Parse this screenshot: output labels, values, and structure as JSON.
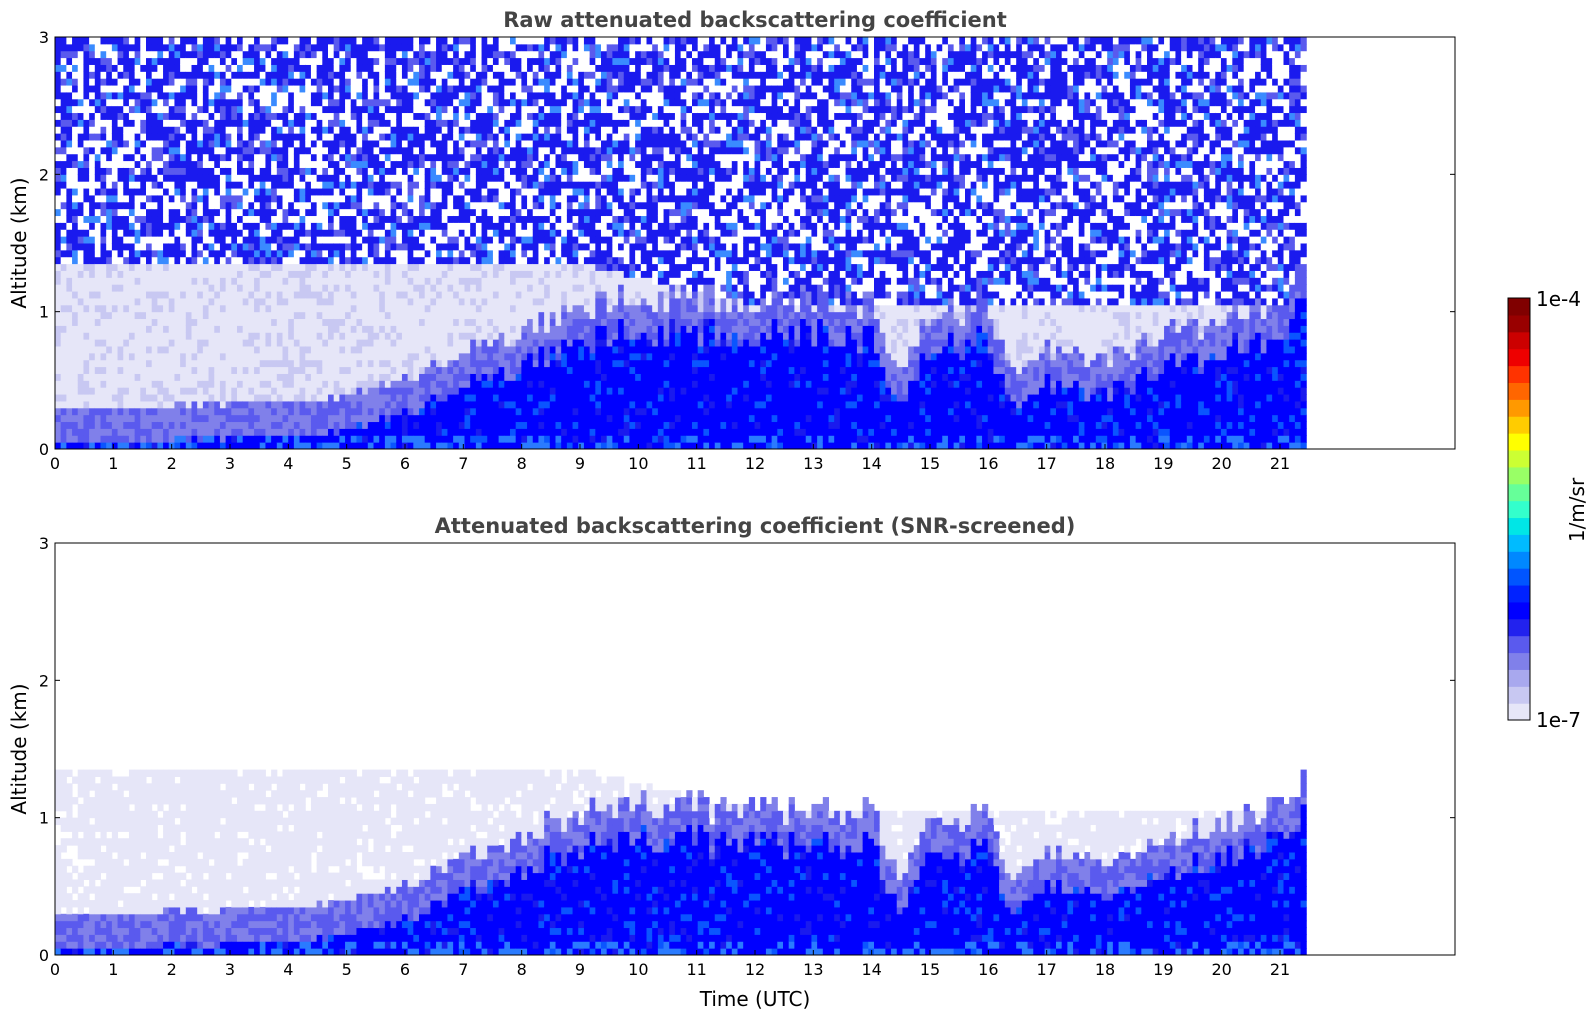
{
  "chart_data": [
    {
      "type": "heatmap",
      "title": "Raw attenuated backscattering coefficient",
      "xlabel": "",
      "ylabel": "Altitude (km)",
      "xlim": [
        0,
        24
      ],
      "ylim": [
        0,
        3
      ],
      "x_ticks": [
        "0",
        "1",
        "2",
        "3",
        "4",
        "5",
        "6",
        "7",
        "8",
        "9",
        "10",
        "11",
        "12",
        "13",
        "14",
        "15",
        "16",
        "17",
        "18",
        "19",
        "20",
        "21"
      ],
      "y_ticks": [
        "0",
        "1",
        "2",
        "3"
      ],
      "data_end_time": 21.45,
      "colormap": "jet (log scale)",
      "boundary_profile": {
        "time": [
          0,
          1,
          2,
          3,
          4,
          5,
          6,
          7,
          8,
          9,
          10,
          11,
          12,
          13,
          14,
          14.5,
          15,
          16,
          16.4,
          17,
          18,
          19,
          20,
          21,
          21.45
        ],
        "altitude_km": [
          0.05,
          0.06,
          0.07,
          0.08,
          0.1,
          0.15,
          0.25,
          0.45,
          0.6,
          0.8,
          0.85,
          0.85,
          0.8,
          0.85,
          0.8,
          0.3,
          0.75,
          0.8,
          0.3,
          0.5,
          0.4,
          0.6,
          0.7,
          0.85,
          1.0
        ]
      },
      "noise": true
    },
    {
      "type": "heatmap",
      "title": "Attenuated backscattering coefficient (SNR-screened)",
      "xlabel": "Time (UTC)",
      "ylabel": "Altitude (km)",
      "xlim": [
        0,
        24
      ],
      "ylim": [
        0,
        3
      ],
      "x_ticks": [
        "0",
        "1",
        "2",
        "3",
        "4",
        "5",
        "6",
        "7",
        "8",
        "9",
        "10",
        "11",
        "12",
        "13",
        "14",
        "15",
        "16",
        "17",
        "18",
        "19",
        "20",
        "21"
      ],
      "y_ticks": [
        "0",
        "1",
        "2",
        "3"
      ],
      "data_end_time": 21.45,
      "colormap": "jet (log scale)",
      "boundary_profile": {
        "time": [
          0,
          1,
          2,
          3,
          4,
          5,
          6,
          7,
          8,
          9,
          10,
          11,
          12,
          13,
          14,
          14.5,
          15,
          16,
          16.4,
          17,
          18,
          19,
          20,
          21,
          21.45
        ],
        "altitude_km": [
          0.05,
          0.06,
          0.07,
          0.08,
          0.1,
          0.15,
          0.25,
          0.45,
          0.6,
          0.8,
          0.85,
          0.85,
          0.8,
          0.85,
          0.8,
          0.3,
          0.75,
          0.8,
          0.3,
          0.5,
          0.4,
          0.6,
          0.7,
          0.85,
          1.0
        ]
      },
      "noise": false
    }
  ],
  "colorbar": {
    "label": "1/m/sr",
    "max_label": "1e-4",
    "min_label": "1e-7",
    "colors": [
      "#e6e6f8",
      "#c8c8f2",
      "#a8a8ee",
      "#8080ea",
      "#5a5aee",
      "#2222ee",
      "#0000ff",
      "#0022ff",
      "#0055ff",
      "#0088ff",
      "#00bbff",
      "#00e6e6",
      "#33ffcc",
      "#66ff99",
      "#99ff66",
      "#ccff33",
      "#ffff00",
      "#ffcc00",
      "#ff9900",
      "#ff6600",
      "#ff3300",
      "#ee0000",
      "#cc0000",
      "#990000",
      "#800000"
    ]
  }
}
